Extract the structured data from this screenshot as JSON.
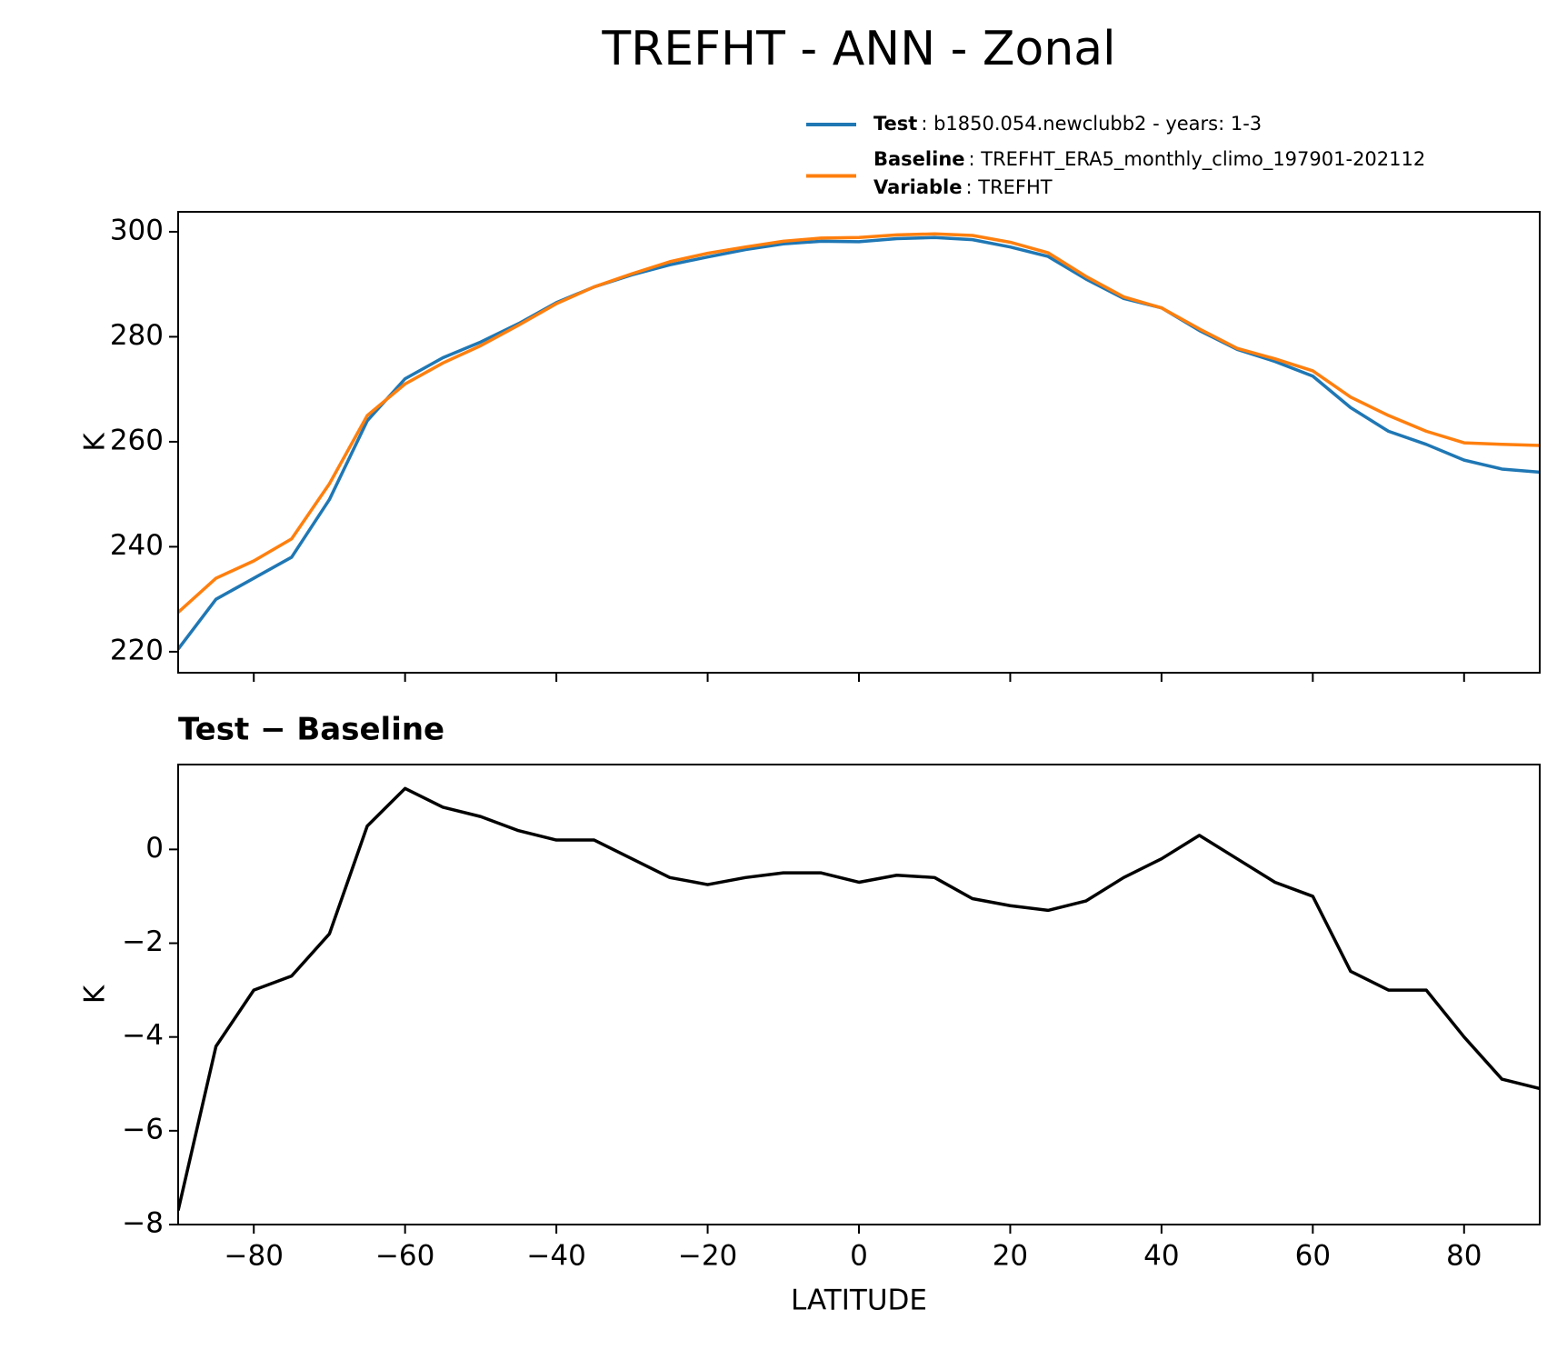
{
  "chart_data": [
    {
      "type": "line",
      "title": "TREFHT - ANN - Zonal",
      "ylabel": "K",
      "x": [
        -90,
        -85,
        -80,
        -75,
        -70,
        -65,
        -60,
        -55,
        -50,
        -45,
        -40,
        -35,
        -30,
        -25,
        -20,
        -15,
        -10,
        -5,
        0,
        5,
        10,
        15,
        20,
        25,
        30,
        35,
        40,
        45,
        50,
        55,
        60,
        65,
        70,
        75,
        80,
        85,
        90
      ],
      "series": [
        {
          "name": "Test",
          "detail": ": b1850.054.newclubb2 - years: 1-3",
          "color": "#1f77b4",
          "values": [
            220.5,
            230,
            234,
            238,
            249,
            264,
            272,
            276,
            279,
            282.5,
            286.5,
            289.5,
            291.8,
            293.7,
            295.2,
            296.6,
            297.7,
            298.2,
            298.1,
            298.7,
            298.9,
            298.5,
            297.1,
            295.3,
            291,
            287.3,
            285.5,
            281.2,
            277.6,
            275.3,
            272.5,
            266.5,
            262,
            259.5,
            256.5,
            254.8,
            254.2
          ]
        },
        {
          "name": "Baseline",
          "detail": ": TREFHT_ERA5_monthly_climo_197901-202112",
          "color": "#ff7f0e",
          "values": [
            227.5,
            234,
            237.3,
            241.5,
            252,
            265,
            271,
            275,
            278.3,
            282.2,
            286.3,
            289.5,
            292,
            294.3,
            295.9,
            297.1,
            298.2,
            298.8,
            298.9,
            299.4,
            299.6,
            299.3,
            298,
            296,
            291.5,
            287.6,
            285.5,
            281.5,
            277.8,
            275.8,
            273.5,
            268.5,
            265,
            262,
            259.8,
            259.5,
            259.3
          ]
        }
      ],
      "legend_extra": {
        "name": "Variable",
        "detail": ": TREFHT"
      },
      "xlim": [
        -90,
        90
      ],
      "ylim": [
        216,
        303.8
      ],
      "xticks": [
        -80,
        -60,
        -40,
        -20,
        0,
        20,
        40,
        60,
        80
      ],
      "yticks": [
        220,
        240,
        260,
        280,
        300
      ]
    },
    {
      "type": "line",
      "title": "Test − Baseline",
      "ylabel": "K",
      "xlabel": "LATITUDE",
      "color": "#000000",
      "x": [
        -90,
        -85,
        -80,
        -75,
        -70,
        -65,
        -60,
        -55,
        -50,
        -45,
        -40,
        -35,
        -30,
        -25,
        -20,
        -15,
        -10,
        -5,
        0,
        5,
        10,
        15,
        20,
        25,
        30,
        35,
        40,
        45,
        50,
        55,
        60,
        65,
        70,
        75,
        80,
        85,
        90
      ],
      "values": [
        -7.7,
        -4.2,
        -3,
        -2.7,
        -1.8,
        0.5,
        1.3,
        0.9,
        0.7,
        0.4,
        0.2,
        0.2,
        -0.2,
        -0.6,
        -0.75,
        -0.6,
        -0.5,
        -0.5,
        -0.7,
        -0.55,
        -0.6,
        -1.05,
        -1.2,
        -1.3,
        -1.1,
        -0.6,
        -0.2,
        0.3,
        -0.2,
        -0.7,
        -1.0,
        -2.6,
        -3.0,
        -3.0,
        -4.0,
        -4.9,
        -5.1
      ],
      "xlim": [
        -90,
        90
      ],
      "ylim": [
        -8,
        1.81
      ],
      "xticks": [
        {
          "value": -80,
          "label": "−80"
        },
        {
          "value": -60,
          "label": "−60"
        },
        {
          "value": -40,
          "label": "−40"
        },
        {
          "value": -20,
          "label": "−20"
        },
        0,
        20,
        40,
        60,
        80
      ],
      "yticks": [
        {
          "value": -8,
          "label": "−8"
        },
        {
          "value": -6,
          "label": "−6"
        },
        {
          "value": -4,
          "label": "−4"
        },
        {
          "value": -2,
          "label": "−2"
        },
        0
      ]
    }
  ]
}
